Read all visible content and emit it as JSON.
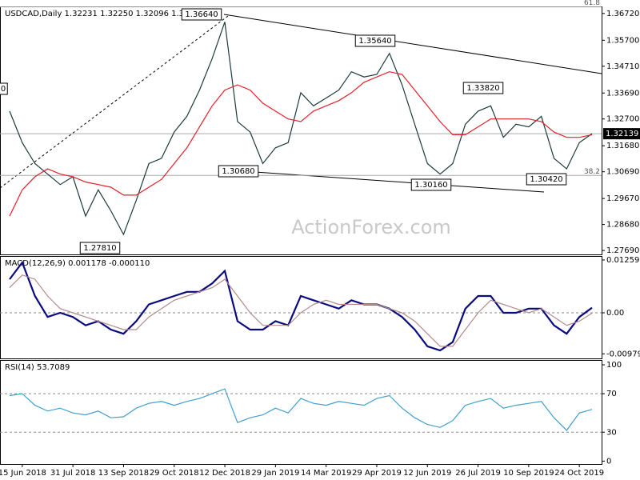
{
  "chart_data": [
    {
      "type": "line",
      "title": "USDCAD,Daily 1.32231 1.32250 1.32096 1.32139",
      "watermark": "ActionForex.com",
      "ylim": [
        1.2754,
        1.3699
      ],
      "yticks": [
        {
          "value": 1.3672,
          "label": "1.36720"
        },
        {
          "value": 1.357,
          "label": "1.35700"
        },
        {
          "value": 1.3471,
          "label": "1.34710"
        },
        {
          "value": 1.3369,
          "label": "1.33690"
        },
        {
          "value": 1.327,
          "label": "1.32700"
        },
        {
          "value": 1.3168,
          "label": "1.31680"
        },
        {
          "value": 1.3069,
          "label": "1.30690"
        },
        {
          "value": 1.2967,
          "label": "1.29670"
        },
        {
          "value": 1.2868,
          "label": "1.28680"
        },
        {
          "value": 1.2769,
          "label": "1.27690"
        }
      ],
      "grid": false,
      "last_price": {
        "value": 1.32139,
        "label": "1.32139"
      },
      "fib_levels": [
        {
          "value": 1.3697,
          "label": "61.8"
        },
        {
          "value": 1.3055,
          "label": "38.2"
        }
      ],
      "annotations": [
        "1.36640",
        "1.35640",
        "1.33820",
        "1.30680",
        "1.30160",
        "1.30420",
        "1.27810",
        "0"
      ],
      "series": [
        {
          "name": "USDCAD",
          "color": "#1e3a3a",
          "values": [
            1.33,
            1.318,
            1.31,
            1.306,
            1.302,
            1.305,
            1.29,
            1.3,
            1.292,
            1.283,
            1.296,
            1.31,
            1.312,
            1.322,
            1.328,
            1.338,
            1.35,
            1.364,
            1.326,
            1.322,
            1.31,
            1.316,
            1.318,
            1.337,
            1.332,
            1.335,
            1.338,
            1.345,
            1.343,
            1.344,
            1.352,
            1.34,
            1.325,
            1.31,
            1.306,
            1.31,
            1.325,
            1.33,
            1.332,
            1.32,
            1.325,
            1.324,
            1.328,
            1.312,
            1.308,
            1.318,
            1.3214
          ]
        },
        {
          "name": "MA",
          "color": "#e0202a",
          "values": [
            1.29,
            1.3,
            1.305,
            1.308,
            1.306,
            1.305,
            1.303,
            1.302,
            1.301,
            1.298,
            1.298,
            1.301,
            1.304,
            1.31,
            1.316,
            1.324,
            1.332,
            1.338,
            1.34,
            1.338,
            1.333,
            1.33,
            1.327,
            1.326,
            1.33,
            1.332,
            1.334,
            1.337,
            1.341,
            1.343,
            1.345,
            1.344,
            1.338,
            1.332,
            1.326,
            1.321,
            1.321,
            1.324,
            1.327,
            1.327,
            1.327,
            1.327,
            1.326,
            1.322,
            1.32,
            1.32,
            1.321
          ]
        }
      ]
    },
    {
      "type": "line",
      "title": "MACD(12,26,9) 0.001178 -0.000110",
      "ylim": [
        -0.01088,
        0.01355
      ],
      "yticks": [
        0.012599,
        {
          "value": 0,
          "label": "0.00"
        },
        -0.00979
      ],
      "grid": true,
      "series": [
        {
          "name": "MACD",
          "color": "#0a0a80",
          "values": [
            0.008,
            0.012,
            0.004,
            -0.001,
            0.0,
            -0.001,
            -0.003,
            -0.002,
            -0.004,
            -0.005,
            -0.002,
            0.002,
            0.003,
            0.004,
            0.005,
            0.005,
            0.007,
            0.01,
            -0.002,
            -0.004,
            -0.004,
            -0.002,
            -0.003,
            0.004,
            0.003,
            0.002,
            0.001,
            0.003,
            0.002,
            0.002,
            0.001,
            -0.001,
            -0.004,
            -0.008,
            -0.009,
            -0.007,
            0.001,
            0.004,
            0.004,
            0.0,
            0.0,
            0.001,
            0.001,
            -0.003,
            -0.005,
            -0.001,
            0.0012
          ]
        },
        {
          "name": "Signal",
          "color": "#b58a8a",
          "values": [
            0.006,
            0.009,
            0.008,
            0.004,
            0.001,
            0.0,
            -0.001,
            -0.002,
            -0.003,
            -0.004,
            -0.004,
            -0.001,
            0.001,
            0.003,
            0.004,
            0.005,
            0.006,
            0.008,
            0.004,
            0.0,
            -0.003,
            -0.003,
            -0.003,
            0.0,
            0.002,
            0.003,
            0.002,
            0.002,
            0.002,
            0.002,
            0.001,
            0.0,
            -0.002,
            -0.005,
            -0.008,
            -0.008,
            -0.004,
            0.0,
            0.003,
            0.002,
            0.001,
            0.0,
            0.001,
            -0.001,
            -0.003,
            -0.002,
            -0.0001
          ]
        }
      ]
    },
    {
      "type": "line",
      "title": "RSI(14) 53.7089",
      "ylim": [
        -3,
        105
      ],
      "yticks": [
        100,
        70,
        30,
        0
      ],
      "grid": true,
      "categories": [
        null,
        "15 Jun 2018",
        null,
        null,
        null,
        "31 Jul 2018",
        null,
        null,
        null,
        "13 Sep 2018",
        null,
        null,
        null,
        "29 Oct 2018",
        null,
        null,
        null,
        "12 Dec 2018",
        null,
        null,
        null,
        "29 Jan 2019",
        null,
        null,
        null,
        "14 Mar 2019",
        null,
        null,
        null,
        "29 Apr 2019",
        null,
        null,
        null,
        "12 Jun 2019",
        null,
        null,
        null,
        "26 Jul 2019",
        null,
        null,
        null,
        "10 Sep 2019",
        null,
        null,
        null,
        "24 Oct 2019",
        null
      ],
      "series": [
        {
          "name": "RSI",
          "color": "#3f9fcf",
          "values": [
            68,
            70,
            58,
            52,
            55,
            50,
            48,
            52,
            45,
            46,
            55,
            60,
            62,
            58,
            62,
            65,
            70,
            75,
            40,
            45,
            48,
            55,
            50,
            65,
            60,
            58,
            62,
            60,
            58,
            65,
            68,
            55,
            45,
            38,
            35,
            42,
            58,
            62,
            65,
            55,
            58,
            60,
            62,
            45,
            32,
            50,
            53.7
          ]
        }
      ]
    }
  ]
}
